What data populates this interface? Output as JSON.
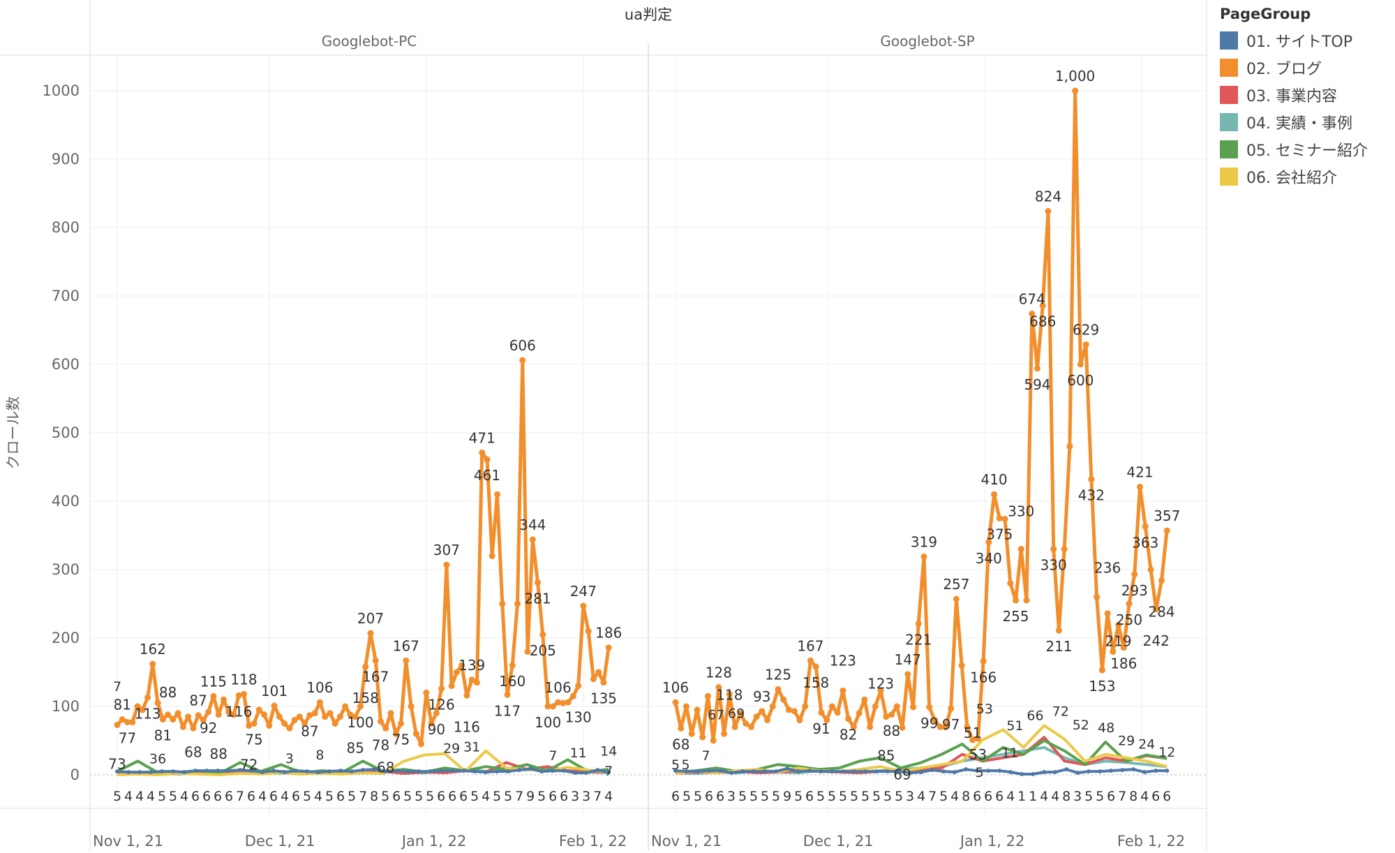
{
  "chart_data": {
    "type": "line",
    "title": "",
    "column_header": "ua判定",
    "ylabel": "クロール数",
    "ylim": [
      0,
      1000
    ],
    "yticks": [
      0,
      100,
      200,
      300,
      400,
      500,
      600,
      700,
      800,
      900,
      1000
    ],
    "x_ticks": [
      {
        "label": "Nov 1, 21",
        "day": 0
      },
      {
        "label": "Dec 1, 21",
        "day": 30
      },
      {
        "label": "Jan 1, 22",
        "day": 61
      },
      {
        "label": "Feb 1, 22",
        "day": 92
      }
    ],
    "x_day_range": [
      0,
      97
    ],
    "grid": true,
    "legend": {
      "title": "PageGroup",
      "placement": "right",
      "entries": [
        {
          "key": "top",
          "label": "01. サイトTOP",
          "color": "#4e79a7"
        },
        {
          "key": "blog",
          "label": "02. ブログ",
          "color": "#f28e2b"
        },
        {
          "key": "biz",
          "label": "03. 事業内容",
          "color": "#e15759"
        },
        {
          "key": "case",
          "label": "04. 実績・事例",
          "color": "#76b7b2"
        },
        {
          "key": "seminar",
          "label": "05. セミナー紹介",
          "color": "#59a14f"
        },
        {
          "key": "company",
          "label": "06. 会社紹介",
          "color": "#edc948"
        }
      ]
    },
    "panels": [
      {
        "name": "Googlebot-PC",
        "series": {
          "blog": [
            73,
            81,
            77,
            77,
            100,
            95,
            113,
            162,
            105,
            81,
            88,
            81,
            90,
            70,
            85,
            68,
            87,
            80,
            92,
            115,
            88,
            110,
            92,
            88,
            116,
            118,
            72,
            75,
            95,
            88,
            72,
            101,
            85,
            75,
            68,
            80,
            85,
            75,
            87,
            90,
            106,
            85,
            90,
            75,
            85,
            100,
            88,
            85,
            100,
            158,
            207,
            167,
            78,
            68,
            90,
            60,
            75,
            167,
            100,
            60,
            45,
            120,
            75,
            90,
            126,
            307,
            130,
            150,
            160,
            116,
            139,
            135,
            471,
            461,
            320,
            410,
            250,
            117,
            160,
            250,
            606,
            180,
            344,
            281,
            205,
            100,
            100,
            106,
            105,
            106,
            115,
            130,
            247,
            210,
            140,
            150,
            135,
            186
          ],
          "biz": [
            3,
            2,
            1,
            3,
            2,
            4,
            3,
            2,
            5,
            3,
            2,
            4,
            3,
            5,
            2,
            4,
            3,
            6,
            4,
            18,
            8,
            12,
            6,
            5,
            4
          ],
          "case": [
            2,
            3,
            2,
            1,
            3,
            2,
            4,
            3,
            2,
            5,
            3,
            4,
            6,
            5,
            4,
            3,
            6,
            8,
            5,
            10,
            7,
            9,
            6,
            4,
            3
          ],
          "seminar": [
            5,
            20,
            3,
            4,
            6,
            2,
            18,
            5,
            15,
            3,
            6,
            4,
            20,
            5,
            8,
            4,
            10,
            6,
            12,
            8,
            15,
            6,
            22,
            5,
            8
          ],
          "company": [
            0,
            1,
            0,
            2,
            1,
            0,
            2,
            1,
            3,
            1,
            2,
            1,
            3,
            2,
            20,
            29,
            31,
            5,
            35,
            10,
            8,
            5,
            11,
            7,
            4
          ],
          "top": [
            5,
            4,
            4,
            4,
            5,
            5,
            4,
            6,
            6,
            6,
            6,
            7,
            6,
            4,
            6,
            4,
            6,
            5,
            4,
            5,
            6,
            5,
            7,
            8,
            5,
            6,
            5,
            5,
            5,
            6,
            6,
            6,
            5,
            4,
            5,
            5,
            7,
            9,
            5,
            6,
            6,
            3,
            3,
            7,
            4
          ]
        },
        "blog_labeled_indices": [
          0,
          1,
          2,
          6,
          7,
          9,
          10,
          15,
          16,
          18,
          19,
          20,
          24,
          25,
          26,
          27,
          31,
          38,
          40,
          47,
          48,
          49,
          50,
          51,
          52,
          53,
          56,
          57,
          63,
          64,
          65,
          69,
          70,
          72,
          73,
          77,
          78,
          80,
          82,
          83,
          84,
          85,
          87,
          91,
          92,
          96,
          97
        ],
        "annotations": [
          {
            "series": "seminar",
            "day": 0,
            "value": 7
          },
          {
            "series": "seminar",
            "day": 8,
            "value": 36
          },
          {
            "series": "seminar",
            "day": 34,
            "value": 3
          },
          {
            "series": "seminar",
            "day": 40,
            "value": 8
          },
          {
            "series": "company",
            "day": 66,
            "value": 29
          },
          {
            "series": "company",
            "day": 70,
            "value": 31
          },
          {
            "series": "company",
            "day": 86,
            "value": 7
          },
          {
            "series": "company",
            "day": 91,
            "value": 11
          },
          {
            "series": "top",
            "day": 97,
            "value": 14
          },
          {
            "series": "company",
            "day": 97,
            "value": 7
          }
        ]
      },
      {
        "name": "Googlebot-SP",
        "series": {
          "blog": [
            106,
            68,
            100,
            60,
            95,
            55,
            115,
            50,
            128,
            60,
            118,
            70,
            90,
            75,
            70,
            85,
            93,
            80,
            100,
            125,
            110,
            95,
            93,
            80,
            100,
            167,
            158,
            91,
            80,
            100,
            91,
            123,
            82,
            70,
            90,
            110,
            70,
            100,
            123,
            85,
            88,
            100,
            69,
            147,
            99,
            221,
            319,
            99,
            80,
            70,
            70,
            97,
            257,
            160,
            70,
            51,
            53,
            166,
            340,
            410,
            375,
            374,
            280,
            255,
            330,
            255,
            674,
            594,
            686,
            824,
            330,
            211,
            330,
            480,
            1000,
            600,
            629,
            432,
            260,
            153,
            236,
            180,
            219,
            186,
            250,
            293,
            421,
            363,
            300,
            242,
            284,
            357
          ],
          "biz": [
            2,
            4,
            3,
            5,
            3,
            4,
            6,
            5,
            4,
            3,
            5,
            6,
            8,
            10,
            30,
            20,
            25,
            30,
            55,
            20,
            15,
            25,
            20,
            28,
            24
          ],
          "case": [
            3,
            2,
            4,
            3,
            5,
            4,
            3,
            6,
            5,
            4,
            6,
            8,
            10,
            12,
            20,
            25,
            30,
            35,
            40,
            25,
            15,
            20,
            18,
            15,
            12
          ],
          "seminar": [
            4,
            6,
            10,
            5,
            8,
            15,
            12,
            8,
            10,
            20,
            25,
            10,
            18,
            30,
            45,
            20,
            40,
            30,
            50,
            35,
            15,
            48,
            20,
            29,
            24
          ],
          "company": [
            2,
            5,
            3,
            6,
            8,
            4,
            10,
            6,
            5,
            8,
            12,
            5,
            10,
            15,
            20,
            51,
            66,
            40,
            72,
            52,
            20,
            30,
            25,
            20,
            12
          ],
          "top": [
            6,
            5,
            5,
            6,
            6,
            3,
            5,
            5,
            5,
            5,
            9,
            5,
            6,
            5,
            5,
            5,
            5,
            5,
            5,
            5,
            5,
            3,
            4,
            7,
            5,
            4,
            8,
            6,
            6,
            6,
            4,
            1,
            1,
            4,
            4,
            8,
            3,
            5,
            5,
            6,
            7,
            8,
            4,
            6,
            6
          ]
        },
        "blog_labeled_indices": [
          0,
          1,
          8,
          10,
          16,
          19,
          25,
          26,
          27,
          31,
          32,
          38,
          39,
          40,
          42,
          43,
          45,
          46,
          47,
          51,
          52,
          55,
          56,
          57,
          58,
          59,
          60,
          63,
          64,
          66,
          67,
          68,
          69,
          70,
          71,
          74,
          75,
          76,
          77,
          79,
          80,
          82,
          83,
          84,
          85,
          86,
          87,
          89,
          90,
          91
        ],
        "annotations": [
          {
            "series": "top",
            "day": 0,
            "value": 5
          },
          {
            "series": "seminar",
            "day": 2,
            "value": 5
          },
          {
            "series": "seminar",
            "day": 6,
            "value": 7
          },
          {
            "series": "seminar",
            "day": 8,
            "value": 67
          },
          {
            "series": "seminar",
            "day": 12,
            "value": 69
          },
          {
            "series": "seminar",
            "day": 60,
            "value": 5
          },
          {
            "series": "biz",
            "day": 61,
            "value": 53
          },
          {
            "series": "company",
            "day": 66,
            "value": 11
          },
          {
            "series": "company",
            "day": 67,
            "value": 51
          },
          {
            "series": "company",
            "day": 71,
            "value": 66
          },
          {
            "series": "company",
            "day": 76,
            "value": 72
          },
          {
            "series": "company",
            "day": 80,
            "value": 52
          },
          {
            "series": "seminar",
            "day": 85,
            "value": 48
          },
          {
            "series": "seminar",
            "day": 89,
            "value": 29
          },
          {
            "series": "seminar",
            "day": 93,
            "value": 24
          },
          {
            "series": "company",
            "day": 97,
            "value": 12
          }
        ]
      }
    ]
  }
}
